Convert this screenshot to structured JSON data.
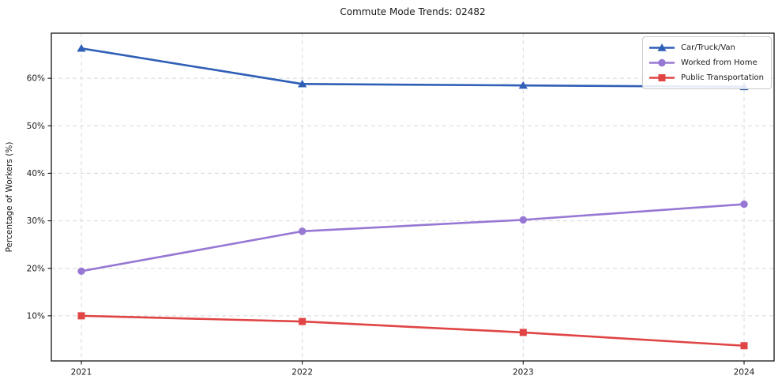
{
  "chart_data": {
    "type": "line",
    "title": "Commute Mode Trends: 02482",
    "xlabel": "",
    "ylabel": "Percentage of Workers (%)",
    "categories": [
      "2021",
      "2022",
      "2023",
      "2024"
    ],
    "series": [
      {
        "name": "Car/Truck/Van",
        "color": "#2f5fb6",
        "marker": "triangle",
        "values": [
          66.3,
          58.8,
          58.5,
          58.2
        ]
      },
      {
        "name": "Worked from Home",
        "color": "#9678d4",
        "marker": "circle",
        "values": [
          19.4,
          27.8,
          30.2,
          33.5
        ]
      },
      {
        "name": "Public Transportation",
        "color": "#e04444",
        "marker": "square",
        "values": [
          10.0,
          8.8,
          6.5,
          3.7
        ]
      }
    ],
    "yticks": [
      10,
      20,
      30,
      40,
      50,
      60
    ],
    "ytick_labels": [
      "10%",
      "20%",
      "30%",
      "40%",
      "50%",
      "60%"
    ],
    "ylim": [
      0.5,
      69.5
    ],
    "grid": true,
    "grid_style": "dashed",
    "legend_position": "upper right"
  }
}
